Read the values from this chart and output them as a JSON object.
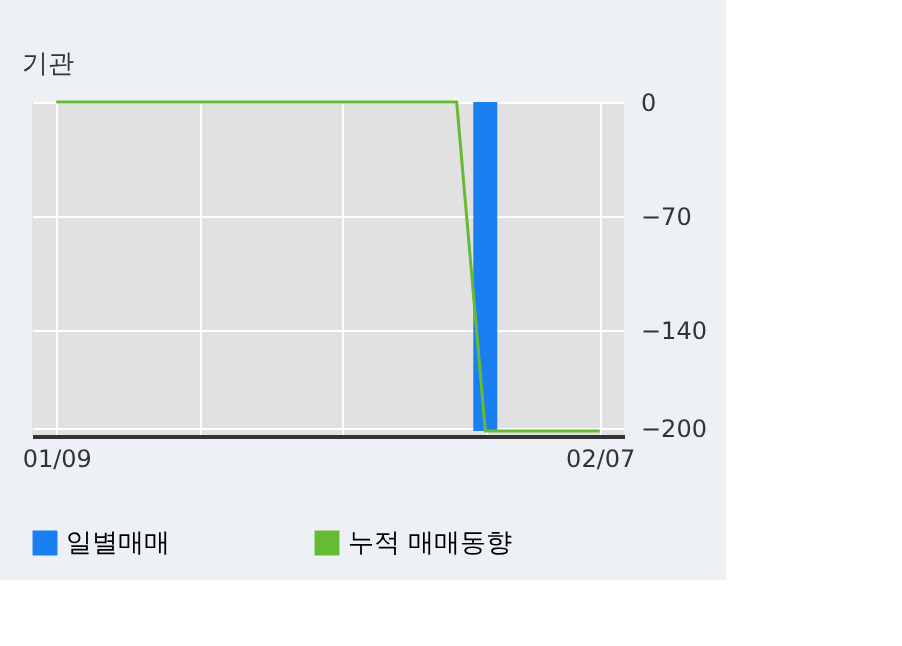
{
  "chart_data": {
    "type": "bar",
    "title": "기관",
    "categories": [
      "01/09",
      null,
      null,
      null,
      null,
      null,
      null,
      null,
      null,
      null,
      null,
      null,
      null,
      null,
      null,
      null,
      null,
      null,
      null,
      "02/07"
    ],
    "series": [
      {
        "name": "일별매매",
        "color": "#1a7ff0",
        "values": [
          0,
          0,
          0,
          0,
          0,
          0,
          0,
          0,
          0,
          0,
          0,
          0,
          0,
          0,
          0,
          -202,
          0,
          0,
          0,
          0
        ]
      },
      {
        "name": "누적 매매동향",
        "type": "line",
        "color": "#66bb33",
        "values": [
          0,
          0,
          0,
          0,
          0,
          0,
          0,
          0,
          0,
          0,
          0,
          0,
          0,
          0,
          0,
          -202,
          -202,
          -202,
          -202,
          -202
        ]
      }
    ],
    "ylim": [
      -205,
      0
    ],
    "yticks": [
      0,
      -70,
      -140,
      -200
    ],
    "grid": true,
    "legend": "bottom"
  }
}
